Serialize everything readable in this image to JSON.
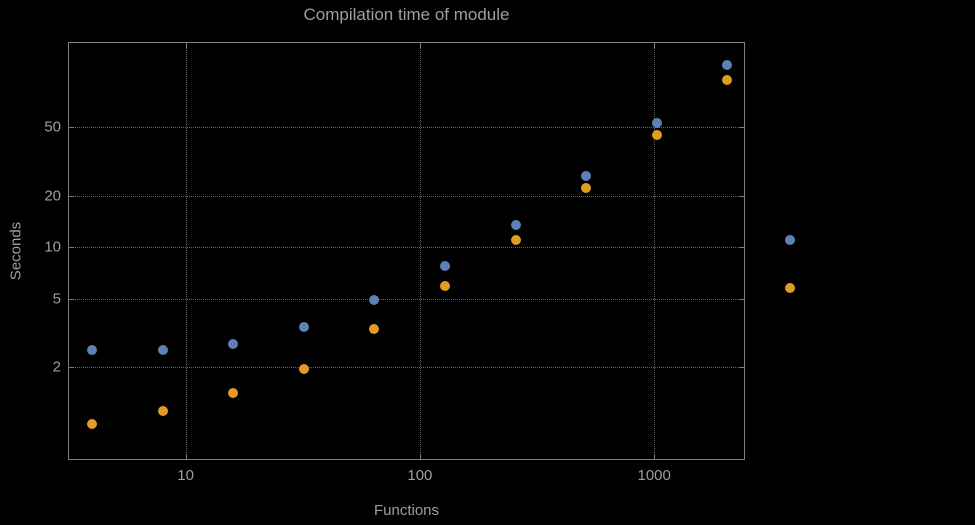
{
  "title": "Compilation time of module",
  "colors": {
    "background": "#000000",
    "frame": "#7f7f7f",
    "grid": "#666666",
    "text": "#9e9e9e",
    "series_blue": "#5E81B5",
    "series_orange": "#E19C24"
  },
  "chart_data": {
    "type": "scatter",
    "title": "Compilation time of module",
    "xlabel": "Functions",
    "ylabel": "Seconds",
    "x_scale": "log",
    "y_scale": "log",
    "grid": true,
    "x_range": [
      3.18,
      2417
    ],
    "y_range": [
      0.578,
      155.6
    ],
    "x": [
      4,
      8,
      16,
      32,
      64,
      128,
      256,
      512,
      1024,
      2048
    ],
    "series": [
      {
        "name": "series-blue",
        "color": "#5E81B5",
        "values": [
          2.5,
          2.5,
          2.7,
          3.4,
          4.9,
          7.8,
          13.5,
          26,
          53,
          115
        ]
      },
      {
        "name": "series-orange",
        "color": "#E19C24",
        "values": [
          0.92,
          1.1,
          1.4,
          1.95,
          3.3,
          5.9,
          11,
          22,
          45,
          95
        ]
      }
    ],
    "x_ticks": [
      {
        "value": 10,
        "label": "10"
      },
      {
        "value": 100,
        "label": "100"
      },
      {
        "value": 1000,
        "label": "1000"
      }
    ],
    "y_ticks": [
      {
        "value": 2,
        "label": "2"
      },
      {
        "value": 5,
        "label": "5"
      },
      {
        "value": 10,
        "label": "10"
      },
      {
        "value": 20,
        "label": "20"
      },
      {
        "value": 50,
        "label": "50"
      }
    ],
    "legend_position": "right"
  },
  "legend": {
    "items": [
      {
        "color": "#5E81B5",
        "label": ""
      },
      {
        "color": "#E19C24",
        "label": ""
      }
    ]
  }
}
